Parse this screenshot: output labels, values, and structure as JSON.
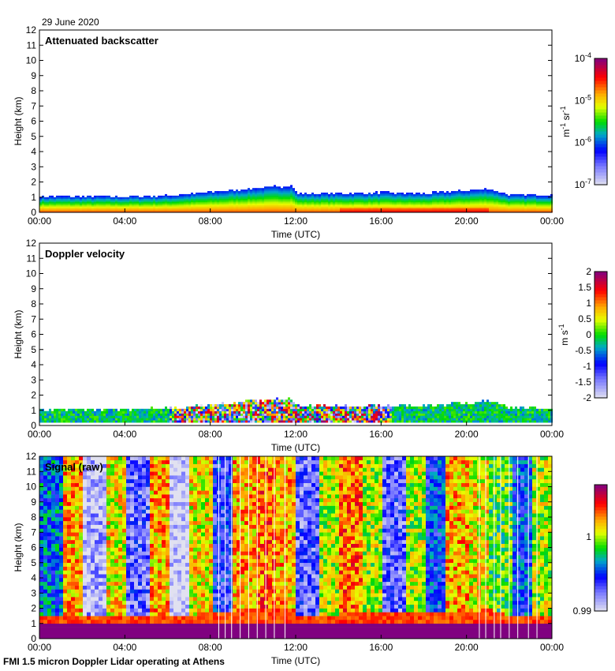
{
  "header": {
    "date": "29 June 2020"
  },
  "footer": {
    "caption": "FMI 1.5 micron Doppler Lidar operating at Athens"
  },
  "chart_data": [
    {
      "type": "heatmap",
      "title": "Attenuated backscatter",
      "xlabel": "Time (UTC)",
      "ylabel": "Height (km)",
      "xticks": [
        "00:00",
        "04:00",
        "08:00",
        "12:00",
        "16:00",
        "20:00",
        "00:00"
      ],
      "xlim_hours": [
        0,
        24
      ],
      "yticks": [
        "0",
        "1",
        "2",
        "3",
        "4",
        "5",
        "6",
        "7",
        "8",
        "9",
        "10",
        "11",
        "12"
      ],
      "ylim": [
        0,
        12
      ],
      "colorbar": {
        "scale": "log",
        "min": 1e-07,
        "max": 0.0001,
        "ticks": [
          {
            "base": "10",
            "exp": "-4"
          },
          {
            "base": "10",
            "exp": "-5"
          },
          {
            "base": "10",
            "exp": "-6"
          },
          {
            "base": "10",
            "exp": "-7"
          }
        ],
        "unit_m": "m",
        "unit_m_exp": "-1",
        "unit_sr": " sr",
        "unit_sr_exp": "-1"
      },
      "boundary_layer_top_km": {
        "hours": [
          0,
          2,
          4,
          6,
          8,
          10,
          11,
          11.8,
          12,
          14,
          16,
          18,
          20,
          21,
          22,
          24
        ],
        "values": [
          1.0,
          1.0,
          1.0,
          1.05,
          1.3,
          1.55,
          1.65,
          1.7,
          1.2,
          1.2,
          1.25,
          1.2,
          1.4,
          1.5,
          1.1,
          1.1
        ]
      }
    },
    {
      "type": "heatmap",
      "title": "Doppler velocity",
      "xlabel": "Time (UTC)",
      "ylabel": "Height (km)",
      "xticks": [
        "00:00",
        "04:00",
        "08:00",
        "12:00",
        "16:00",
        "20:00",
        "00:00"
      ],
      "xlim_hours": [
        0,
        24
      ],
      "yticks": [
        "0",
        "1",
        "2",
        "3",
        "4",
        "5",
        "6",
        "7",
        "8",
        "9",
        "10",
        "11",
        "12"
      ],
      "ylim": [
        0,
        12
      ],
      "colorbar": {
        "scale": "linear",
        "min": -2,
        "max": 2,
        "ticks": [
          "2",
          "1.5",
          "1",
          "0.5",
          "0",
          "-0.5",
          "-1",
          "-1.5",
          "-2"
        ],
        "unit": "m s",
        "unit_exp": "-1"
      },
      "turbulent_period_hours": [
        6,
        16.5
      ]
    },
    {
      "type": "heatmap",
      "title": "Signal (raw)",
      "xlabel": "Time (UTC)",
      "ylabel": "Height (km)",
      "xticks": [
        "00:00",
        "04:00",
        "08:00",
        "12:00",
        "16:00",
        "20:00",
        "00:00"
      ],
      "xlim_hours": [
        0,
        24
      ],
      "yticks": [
        "0",
        "1",
        "2",
        "3",
        "4",
        "5",
        "6",
        "7",
        "8",
        "9",
        "10",
        "11",
        "12"
      ],
      "ylim": [
        0,
        12
      ],
      "colorbar": {
        "scale": "linear",
        "min": 0.99,
        "max": 1.007,
        "ticks": [
          "1",
          "0.99"
        ]
      },
      "hourly_mean_signal": [
        0.996,
        1.002,
        0.991,
        1.001,
        0.993,
        1.002,
        0.99,
        1.001,
        0.994,
        1.002,
        1.003,
        1.002,
        0.993,
        1.0,
        1.003,
        1.0,
        0.993,
        1.0,
        0.995,
        1.002,
        1.001,
        0.999,
        0.995,
        1.0
      ],
      "saturated_layer_top_km": 1.0
    }
  ]
}
